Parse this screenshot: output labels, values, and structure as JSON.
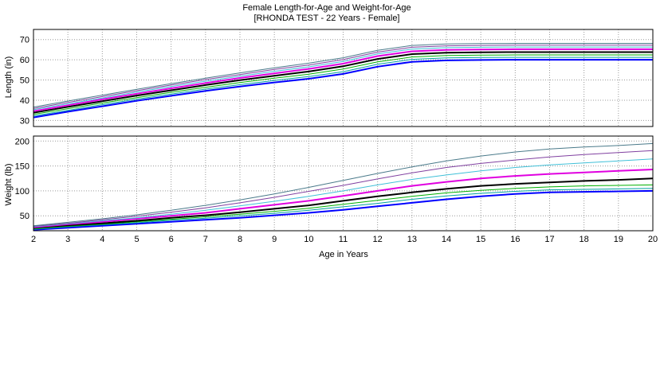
{
  "chart_data": [
    {
      "type": "line",
      "title": "Female Length-for-Age and Weight-for-Age",
      "subtitle": "[RHONDA TEST - 22 Years - Female]",
      "xlabel": "Age in Years",
      "ylabel": "Length (in)",
      "xlim": [
        2,
        20
      ],
      "ylim": [
        27,
        75
      ],
      "x_ticks": [
        "2",
        "3",
        "4",
        "5",
        "6",
        "7",
        "8",
        "9",
        "10",
        "11",
        "12",
        "13",
        "14",
        "15",
        "16",
        "17",
        "18",
        "19",
        "20"
      ],
      "y_ticks": [
        "30",
        "40",
        "50",
        "60",
        "70"
      ],
      "grid": true,
      "x": [
        2,
        3,
        4,
        5,
        6,
        7,
        8,
        9,
        10,
        11,
        12,
        13,
        14,
        15,
        16,
        17,
        18,
        19,
        20
      ],
      "series": [
        {
          "color": "#0000ff",
          "values": [
            31.5,
            34.3,
            37.0,
            39.7,
            42.2,
            44.6,
            46.8,
            48.8,
            50.6,
            53.0,
            56.6,
            59.0,
            59.7,
            59.9,
            60.0,
            60.0,
            60.0,
            60.0,
            60.0
          ]
        },
        {
          "color": "#00a0a0",
          "values": [
            32.2,
            35.0,
            37.8,
            40.5,
            43.0,
            45.5,
            47.7,
            49.8,
            51.7,
            54.1,
            57.8,
            60.2,
            60.9,
            61.1,
            61.2,
            61.2,
            61.2,
            61.2,
            61.2
          ]
        },
        {
          "color": "#00b000",
          "values": [
            33.0,
            35.8,
            38.6,
            41.3,
            43.9,
            46.4,
            48.7,
            50.9,
            52.9,
            55.4,
            59.0,
            61.4,
            62.1,
            62.3,
            62.4,
            62.4,
            62.4,
            62.4,
            62.4
          ]
        },
        {
          "color": "#000000",
          "values": [
            33.8,
            36.7,
            39.5,
            42.3,
            44.9,
            47.5,
            49.9,
            52.1,
            54.2,
            56.8,
            60.4,
            62.8,
            63.5,
            63.7,
            63.8,
            63.8,
            63.8,
            63.8,
            63.8
          ]
        },
        {
          "color": "#e000e0",
          "values": [
            34.6,
            37.5,
            40.4,
            43.2,
            45.9,
            48.5,
            51.0,
            53.3,
            55.5,
            58.1,
            61.8,
            64.2,
            64.9,
            65.1,
            65.2,
            65.2,
            65.2,
            65.2,
            65.2
          ]
        },
        {
          "color": "#40c0d8",
          "values": [
            35.3,
            38.2,
            41.1,
            44.0,
            46.8,
            49.4,
            51.9,
            54.3,
            56.5,
            59.2,
            62.9,
            65.3,
            66.0,
            66.2,
            66.3,
            66.3,
            66.3,
            66.3,
            66.3
          ]
        },
        {
          "color": "#8040a0",
          "values": [
            35.9,
            38.9,
            41.8,
            44.7,
            47.5,
            50.2,
            52.7,
            55.2,
            57.4,
            60.1,
            63.8,
            66.2,
            66.9,
            67.1,
            67.2,
            67.2,
            67.2,
            67.2,
            67.2
          ]
        },
        {
          "color": "#4a7a8a",
          "values": [
            36.6,
            39.6,
            42.5,
            45.4,
            48.2,
            50.9,
            53.5,
            56.0,
            58.3,
            61.0,
            64.7,
            67.1,
            67.8,
            68.0,
            68.1,
            68.1,
            68.1,
            68.1,
            68.1
          ]
        }
      ]
    },
    {
      "type": "line",
      "xlabel": "Age in Years",
      "ylabel": "Weight (lb)",
      "xlim": [
        2,
        20
      ],
      "ylim": [
        20,
        210
      ],
      "x_ticks": [
        "2",
        "3",
        "4",
        "5",
        "6",
        "7",
        "8",
        "9",
        "10",
        "11",
        "12",
        "13",
        "14",
        "15",
        "16",
        "17",
        "18",
        "19",
        "20"
      ],
      "y_ticks": [
        "50",
        "100",
        "150",
        "200"
      ],
      "grid": true,
      "x": [
        2,
        3,
        4,
        5,
        6,
        7,
        8,
        9,
        10,
        11,
        12,
        13,
        14,
        15,
        16,
        17,
        18,
        19,
        20
      ],
      "series": [
        {
          "color": "#0000ff",
          "values": [
            22,
            26,
            30,
            34,
            38,
            42,
            46,
            51,
            56,
            62,
            69,
            76,
            83,
            89,
            94,
            97,
            98,
            99,
            100
          ]
        },
        {
          "color": "#00a0a0",
          "values": [
            23,
            28,
            32,
            36,
            41,
            45,
            50,
            55,
            61,
            68,
            75,
            83,
            90,
            95,
            99,
            102,
            103,
            104,
            105
          ]
        },
        {
          "color": "#00b000",
          "values": [
            24,
            29,
            33,
            38,
            43,
            48,
            53,
            59,
            65,
            73,
            81,
            89,
            96,
            101,
            105,
            108,
            110,
            111,
            112
          ]
        },
        {
          "color": "#000000",
          "values": [
            26,
            31,
            35,
            40,
            46,
            51,
            57,
            64,
            71,
            80,
            89,
            97,
            104,
            110,
            114,
            117,
            120,
            122,
            125
          ]
        },
        {
          "color": "#e000e0",
          "values": [
            27,
            33,
            38,
            44,
            50,
            56,
            64,
            72,
            80,
            90,
            100,
            110,
            118,
            125,
            130,
            134,
            137,
            140,
            143
          ]
        },
        {
          "color": "#40c0d8",
          "values": [
            28,
            34,
            40,
            46,
            53,
            61,
            70,
            79,
            89,
            100,
            112,
            123,
            132,
            140,
            147,
            152,
            156,
            160,
            164
          ]
        },
        {
          "color": "#8040a0",
          "values": [
            29,
            35,
            42,
            49,
            57,
            66,
            76,
            87,
            99,
            111,
            124,
            136,
            147,
            155,
            162,
            168,
            173,
            177,
            181
          ]
        },
        {
          "color": "#4a7a8a",
          "values": [
            30,
            37,
            44,
            52,
            61,
            71,
            82,
            94,
            107,
            121,
            135,
            148,
            160,
            170,
            178,
            184,
            188,
            191,
            195
          ]
        }
      ]
    }
  ]
}
